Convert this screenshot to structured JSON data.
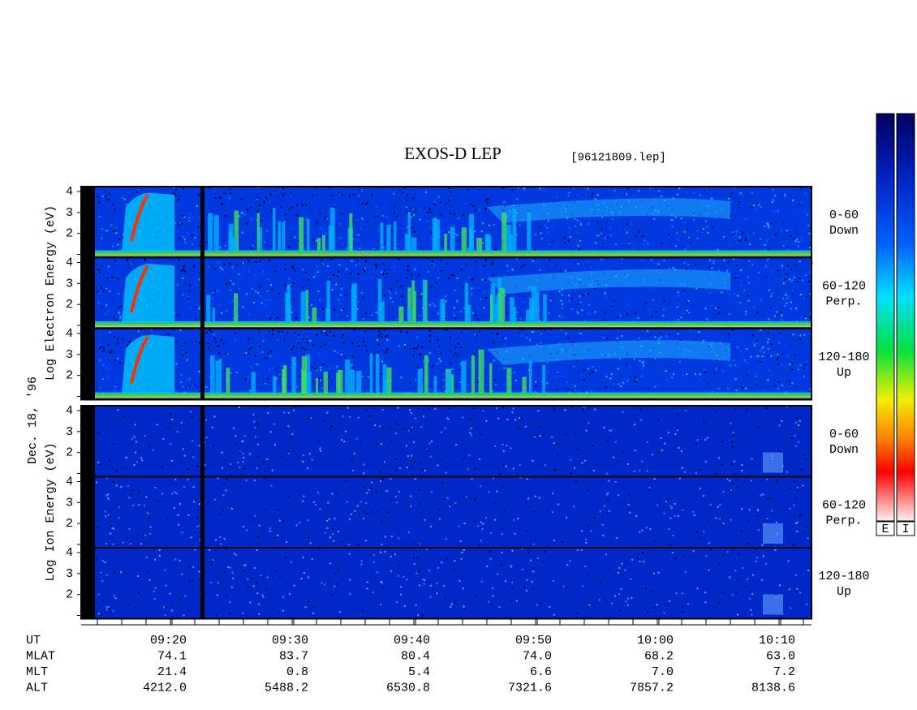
{
  "title": "EXOS-D LEP",
  "file": "[96121809.lep]",
  "date": "Dec. 18, '96",
  "electron": {
    "label": "Log Electron Energy (eV)",
    "panels": [
      {
        "pitch": "0-60",
        "direction": "Down",
        "yticks": [
          "4",
          "3",
          "2"
        ]
      },
      {
        "pitch": "60-120",
        "direction": "Perp.",
        "yticks": [
          "4",
          "3",
          "2"
        ]
      },
      {
        "pitch": "120-180",
        "direction": "Up",
        "yticks": [
          "4",
          "3",
          "2"
        ]
      }
    ]
  },
  "ion": {
    "label": "Log Ion Energy (eV)",
    "panels": [
      {
        "pitch": "0-60",
        "direction": "Down",
        "yticks": [
          "4",
          "3",
          "2"
        ]
      },
      {
        "pitch": "60-120",
        "direction": "Perp.",
        "yticks": [
          "4",
          "3",
          "2"
        ]
      },
      {
        "pitch": "120-180",
        "direction": "Up",
        "yticks": [
          "4",
          "3",
          "2"
        ]
      }
    ]
  },
  "colorbar": {
    "labels": [
      "E",
      "I"
    ]
  },
  "ephemeris": {
    "row_labels": [
      "UT",
      "MLAT",
      "MLT",
      "ALT"
    ],
    "columns": [
      [
        "09:20",
        "74.1",
        "21.4",
        "4212.0"
      ],
      [
        "09:30",
        "83.7",
        "0.8",
        "5488.2"
      ],
      [
        "09:40",
        "80.4",
        "5.4",
        "6530.8"
      ],
      [
        "09:50",
        "74.0",
        "6.6",
        "7321.6"
      ],
      [
        "10:00",
        "68.2",
        "7.0",
        "7857.2"
      ],
      [
        "10:10",
        "63.0",
        "7.2",
        "8138.6"
      ]
    ]
  }
}
